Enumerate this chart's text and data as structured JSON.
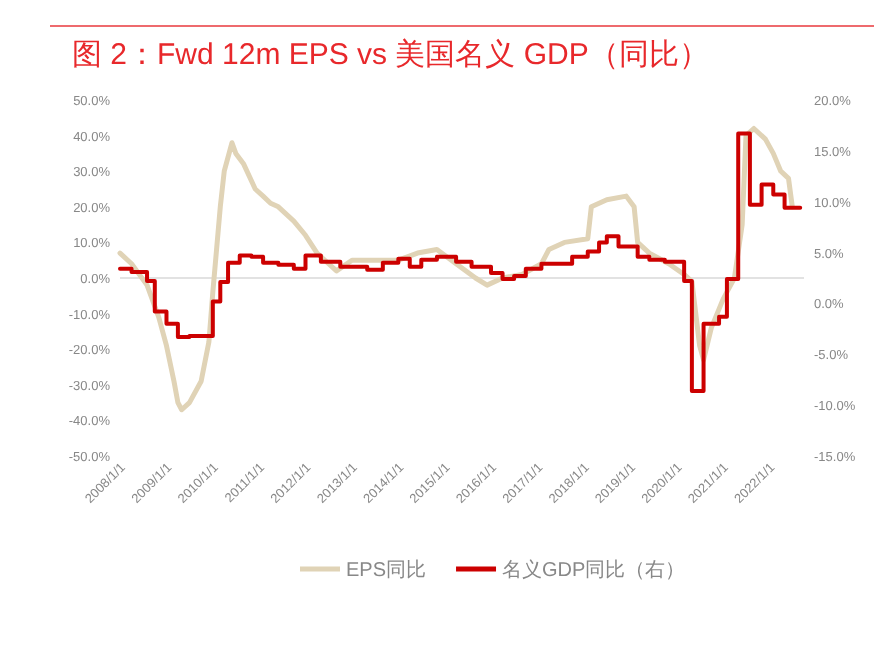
{
  "chart_data": {
    "type": "line",
    "title": "图 2：Fwd 12m EPS vs 美国名义 GDP（同比）",
    "legend": "bottom",
    "xlim": [
      "2008-01-01",
      "2022-10-01"
    ],
    "xticks": [
      {
        "value": "2008-01-01",
        "label": "2008/1/1"
      },
      {
        "value": "2009-01-01",
        "label": "2009/1/1"
      },
      {
        "value": "2010-01-01",
        "label": "2010/1/1"
      },
      {
        "value": "2011-01-01",
        "label": "2011/1/1"
      },
      {
        "value": "2012-01-01",
        "label": "2012/1/1"
      },
      {
        "value": "2013-01-01",
        "label": "2013/1/1"
      },
      {
        "value": "2014-01-01",
        "label": "2014/1/1"
      },
      {
        "value": "2015-01-01",
        "label": "2015/1/1"
      },
      {
        "value": "2016-01-01",
        "label": "2016/1/1"
      },
      {
        "value": "2017-01-01",
        "label": "2017/1/1"
      },
      {
        "value": "2018-01-01",
        "label": "2018/1/1"
      },
      {
        "value": "2019-01-01",
        "label": "2019/1/1"
      },
      {
        "value": "2020-01-01",
        "label": "2020/1/1"
      },
      {
        "value": "2021-01-01",
        "label": "2021/1/1"
      },
      {
        "value": "2022-01-01",
        "label": "2022/1/1"
      }
    ],
    "ylim": [
      -50,
      50
    ],
    "yticks": [
      {
        "value": 50,
        "label": "50.0%"
      },
      {
        "value": 40,
        "label": "40.0%"
      },
      {
        "value": 30,
        "label": "30.0%"
      },
      {
        "value": 20,
        "label": "20.0%"
      },
      {
        "value": 10,
        "label": "10.0%"
      },
      {
        "value": 0,
        "label": "0.0%"
      },
      {
        "value": -10,
        "label": "-10.0%"
      },
      {
        "value": -20,
        "label": "-20.0%"
      },
      {
        "value": -30,
        "label": "-30.0%"
      },
      {
        "value": -40,
        "label": "-40.0%"
      },
      {
        "value": -50,
        "label": "-50.0%"
      }
    ],
    "y2lim": [
      -15,
      20
    ],
    "y2ticks": [
      {
        "value": 20,
        "label": "20.0%"
      },
      {
        "value": 15,
        "label": "15.0%"
      },
      {
        "value": 10,
        "label": "10.0%"
      },
      {
        "value": 5,
        "label": "5.0%"
      },
      {
        "value": 0,
        "label": "0.0%"
      },
      {
        "value": -5,
        "label": "-5.0%"
      },
      {
        "value": -10,
        "label": "-10.0%"
      },
      {
        "value": -15,
        "label": "-15.0%"
      }
    ],
    "series": [
      {
        "name": "EPS同比",
        "color": "#e0d3b6",
        "x": [
          "2008-01",
          "2008-04",
          "2008-08",
          "2008-11",
          "2009-01",
          "2009-03",
          "2009-04",
          "2009-05",
          "2009-07",
          "2009-10",
          "2009-12",
          "2010-01",
          "2010-03",
          "2010-04",
          "2010-06",
          "2010-07",
          "2010-09",
          "2010-12",
          "2011-02",
          "2011-04",
          "2011-06",
          "2011-10",
          "2012-01",
          "2012-04",
          "2012-07",
          "2012-09",
          "2013-01",
          "2013-06",
          "2014-01",
          "2014-06",
          "2014-11",
          "2015-04",
          "2015-09",
          "2015-12",
          "2016-04",
          "2016-09",
          "2017-02",
          "2017-04",
          "2017-08",
          "2018-02",
          "2018-03",
          "2018-07",
          "2018-12",
          "2019-02",
          "2019-03",
          "2019-06",
          "2019-11",
          "2020-03",
          "2020-05",
          "2020-07",
          "2020-08",
          "2020-10",
          "2021-01",
          "2021-04",
          "2021-06",
          "2021-07",
          "2021-09",
          "2021-12",
          "2022-02",
          "2022-04",
          "2022-06",
          "2022-07"
        ],
        "values": [
          7,
          4,
          -2,
          -11,
          -19,
          -29,
          -35,
          -37,
          -35,
          -29,
          -18,
          -4,
          20,
          30,
          38,
          35,
          32,
          25,
          23,
          21,
          20,
          16,
          12,
          7,
          4,
          2,
          5,
          5,
          5,
          7,
          8,
          4,
          0,
          -2,
          0,
          1,
          4,
          8,
          10,
          11,
          20,
          22,
          23,
          20,
          10,
          7,
          4,
          1,
          -1,
          -19,
          -23,
          -14,
          -6,
          0,
          15,
          40,
          42,
          39,
          35,
          30,
          28,
          20
        ]
      },
      {
        "name": "名义GDP同比（右）",
        "type": "step",
        "axis": "y2",
        "color": "#cc0000",
        "x": [
          "2008-01",
          "2008-04",
          "2008-08",
          "2008-10",
          "2009-01",
          "2009-04",
          "2009-07",
          "2010-01",
          "2010-03",
          "2010-05",
          "2010-08",
          "2010-11",
          "2011-02",
          "2011-06",
          "2011-10",
          "2012-01",
          "2012-05",
          "2012-10",
          "2013-05",
          "2013-09",
          "2014-01",
          "2014-04",
          "2014-07",
          "2014-11",
          "2015-04",
          "2015-08",
          "2016-01",
          "2016-04",
          "2016-07",
          "2016-10",
          "2017-02",
          "2017-10",
          "2018-02",
          "2018-05",
          "2018-07",
          "2018-10",
          "2019-03",
          "2019-06",
          "2019-10",
          "2020-03",
          "2020-05",
          "2020-08",
          "2020-12",
          "2021-02",
          "2021-05",
          "2021-08",
          "2021-11",
          "2022-02",
          "2022-05",
          "2022-09"
        ],
        "values": [
          3.4,
          3.1,
          2.2,
          -0.8,
          -2,
          -3.3,
          -3.2,
          0.2,
          2.1,
          4,
          4.7,
          4.6,
          4,
          3.8,
          3.4,
          4.7,
          4.1,
          3.6,
          3.3,
          4,
          4.4,
          3.6,
          4.3,
          4.6,
          4.1,
          3.6,
          3,
          2.4,
          2.7,
          3.4,
          3.9,
          4.6,
          5.1,
          6,
          6.6,
          5.6,
          4.6,
          4.3,
          4.1,
          2.2,
          -8.6,
          -2,
          -1.3,
          2.4,
          16.7,
          9.7,
          11.7,
          10.7,
          9.4,
          9.4
        ]
      }
    ]
  }
}
